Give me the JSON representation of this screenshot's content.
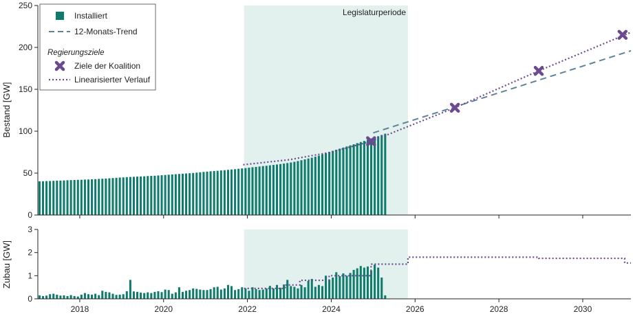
{
  "colors": {
    "installed": "#0f7b6c",
    "trend": "#5f8298",
    "target": "#6b4a8f",
    "shade": "#e3f1ee",
    "axis": "#222222"
  },
  "legend": {
    "installed": "Installiert",
    "trend": "12-Monats-Trend",
    "section": "Regierungsziele",
    "targets": "Ziele der Koalition",
    "linear": "Linearisierter Verlauf"
  },
  "chart_data": [
    {
      "type": "bar",
      "title": "",
      "ylabel": "Bestand [GW]",
      "xlabel": "",
      "xlim": [
        2017.0,
        2031.15
      ],
      "ylim": [
        0,
        250
      ],
      "yticks": [
        0,
        50,
        100,
        150,
        200,
        250
      ],
      "xticks": [
        2018,
        2020,
        2022,
        2024,
        2026,
        2028,
        2030
      ],
      "annotation": "Legislaturperiode",
      "shaded_region": [
        2021.92,
        2025.83
      ],
      "installed_monthly": {
        "start": 2017.04,
        "step": 0.0833,
        "values": [
          40.2,
          40.3,
          40.5,
          40.6,
          40.8,
          41.0,
          41.1,
          41.3,
          41.5,
          41.7,
          41.8,
          42.0,
          42.1,
          42.3,
          42.4,
          42.6,
          42.8,
          43.1,
          43.3,
          43.5,
          43.8,
          44.1,
          44.4,
          44.7,
          44.9,
          45.2,
          45.4,
          45.6,
          45.8,
          46.0,
          46.2,
          46.5,
          46.7,
          46.9,
          47.2,
          47.5,
          47.8,
          48.1,
          48.4,
          48.7,
          49.0,
          49.3,
          49.6,
          49.9,
          50.2,
          50.6,
          51.0,
          51.4,
          51.8,
          52.2,
          52.5,
          52.8,
          53.2,
          53.5,
          53.9,
          54.3,
          54.7,
          55.2,
          55.6,
          56.0,
          56.5,
          57.0,
          57.4,
          57.9,
          58.4,
          58.8,
          59.3,
          59.8,
          60.3,
          60.8,
          61.4,
          62.0,
          62.7,
          63.5,
          64.4,
          65.4,
          66.4,
          67.4,
          68.4,
          69.6,
          70.9,
          72.4,
          73.9,
          75.3,
          76.6,
          77.9,
          79.2,
          80.5,
          81.8,
          83.1,
          84.4,
          85.8,
          87.1,
          88.4,
          89.8,
          91.3,
          92.7,
          94.0,
          95.5,
          97.0
        ]
      },
      "series": [
        {
          "name": "12-Monats-Trend",
          "x": [
            2025.0,
            2031.15
          ],
          "y": [
            98.0,
            196.0
          ]
        },
        {
          "name": "Linearisierter Verlauf",
          "x": [
            2021.9,
            2023.0,
            2024.0,
            2024.95,
            2026.95,
            2028.95,
            2031.15
          ],
          "y": [
            60.0,
            66.0,
            75.0,
            88.0,
            128.0,
            172.0,
            218.0
          ]
        },
        {
          "name": "Ziele der Koalition",
          "x": [
            2024.95,
            2026.95,
            2028.95,
            2030.95
          ],
          "y": [
            88.0,
            128.0,
            172.0,
            215.0
          ]
        }
      ]
    },
    {
      "type": "bar",
      "ylabel": "Zubau [GW]",
      "xlabel": "",
      "xlim": [
        2017.0,
        2031.15
      ],
      "ylim": [
        0,
        3
      ],
      "yticks": [
        0,
        1,
        2,
        3
      ],
      "xticks": [
        2018,
        2020,
        2022,
        2024,
        2026,
        2028,
        2030
      ],
      "shaded_region": [
        2021.92,
        2025.83
      ],
      "additions_monthly": {
        "start": 2017.04,
        "step": 0.0833,
        "values": [
          0.15,
          0.12,
          0.14,
          0.2,
          0.22,
          0.18,
          0.14,
          0.15,
          0.12,
          0.16,
          0.12,
          0.1,
          0.18,
          0.25,
          0.2,
          0.18,
          0.22,
          0.16,
          0.35,
          0.3,
          0.28,
          0.22,
          0.17,
          0.18,
          0.2,
          0.33,
          0.82,
          0.32,
          0.3,
          0.27,
          0.25,
          0.28,
          0.25,
          0.3,
          0.33,
          0.29,
          0.4,
          0.38,
          0.22,
          0.28,
          0.5,
          0.3,
          0.35,
          0.38,
          0.45,
          0.43,
          0.4,
          0.38,
          0.38,
          0.42,
          0.5,
          0.52,
          0.4,
          0.45,
          0.6,
          0.55,
          0.38,
          0.42,
          0.5,
          0.45,
          0.35,
          0.5,
          0.42,
          0.38,
          0.4,
          0.45,
          0.56,
          0.45,
          0.6,
          0.48,
          0.62,
          0.82,
          0.55,
          0.52,
          0.45,
          0.6,
          0.5,
          0.78,
          0.86,
          0.52,
          0.6,
          0.55,
          1.0,
          0.82,
          0.92,
          1.15,
          0.98,
          1.1,
          1.0,
          1.12,
          1.25,
          1.32,
          1.42,
          1.35,
          1.4,
          1.22,
          1.48,
          1.35,
          0.92,
          0.15
        ]
      },
      "series": [
        {
          "name": "Linearisierter Verlauf",
          "x": [
            2021.92,
            2022.9,
            2022.9,
            2023.25,
            2023.25,
            2023.95,
            2023.95,
            2024.95,
            2024.95,
            2025.83,
            2025.83,
            2028.95,
            2028.95,
            2031.0,
            2031.0,
            2031.15
          ],
          "y": [
            0.45,
            0.45,
            0.6,
            0.6,
            0.8,
            0.8,
            1.0,
            1.0,
            1.5,
            1.5,
            1.8,
            1.8,
            1.75,
            1.75,
            1.55,
            1.55
          ]
        }
      ]
    }
  ]
}
